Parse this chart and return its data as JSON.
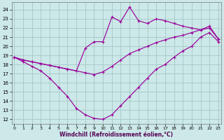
{
  "xlabel": "Windchill (Refroidissement éolien,°C)",
  "bg_color": "#cce8e8",
  "grid_color": "#aacccc",
  "line_color": "#990099",
  "x_ticks": [
    0,
    1,
    2,
    3,
    4,
    5,
    6,
    7,
    8,
    9,
    10,
    11,
    12,
    13,
    14,
    15,
    16,
    17,
    18,
    19,
    20,
    21,
    22,
    23
  ],
  "y_ticks": [
    12,
    13,
    14,
    15,
    16,
    17,
    18,
    19,
    20,
    21,
    22,
    23,
    24
  ],
  "xlim": [
    -0.3,
    23.3
  ],
  "ylim": [
    11.5,
    24.8
  ],
  "line1_x": [
    0,
    1,
    2,
    3,
    4,
    5,
    6,
    7,
    8,
    9,
    10,
    11,
    12,
    13,
    14,
    15,
    16,
    17,
    18,
    19,
    20,
    21,
    22,
    23
  ],
  "line1_y": [
    18.8,
    18.3,
    17.8,
    17.3,
    16.5,
    15.5,
    14.5,
    13.2,
    12.5,
    12.1,
    12.0,
    12.5,
    13.5,
    14.5,
    15.5,
    16.5,
    17.5,
    18.0,
    18.8,
    19.5,
    20.0,
    21.0,
    21.5,
    20.5
  ],
  "line2_x": [
    0,
    1,
    2,
    3,
    4,
    5,
    6,
    7,
    8,
    9,
    10,
    11,
    12,
    13,
    14,
    15,
    16,
    17,
    18,
    19,
    20,
    21,
    22,
    23
  ],
  "line2_y": [
    18.8,
    18.5,
    18.3,
    18.1,
    17.9,
    17.7,
    17.5,
    17.3,
    17.1,
    16.9,
    17.2,
    17.8,
    18.5,
    19.2,
    19.6,
    20.0,
    20.4,
    20.7,
    21.0,
    21.2,
    21.5,
    21.8,
    22.0,
    20.8
  ],
  "line3_x": [
    0,
    1,
    2,
    3,
    4,
    5,
    6,
    7,
    8,
    9,
    10,
    11,
    12,
    13,
    14,
    15,
    16,
    17,
    18,
    19,
    20,
    21,
    22,
    23
  ],
  "line3_y": [
    18.8,
    18.5,
    18.3,
    18.1,
    17.9,
    17.7,
    17.5,
    17.3,
    19.8,
    20.5,
    20.5,
    23.2,
    22.7,
    24.3,
    22.8,
    22.5,
    23.0,
    22.8,
    22.5,
    22.2,
    22.0,
    21.8,
    22.2,
    20.8
  ]
}
